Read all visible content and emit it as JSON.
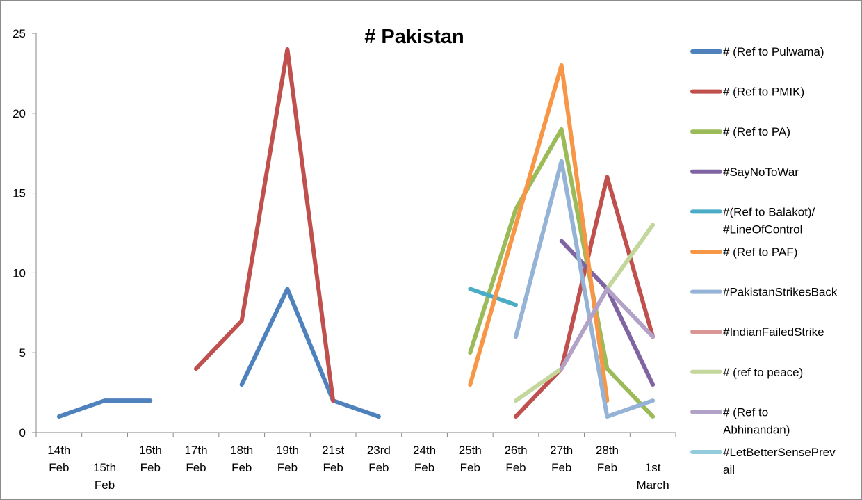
{
  "chart_data": {
    "type": "line",
    "title": "# Pakistan",
    "xlabel": "",
    "ylabel": "",
    "ylim": [
      0,
      25
    ],
    "yticks": [
      "0",
      "5",
      "10",
      "15",
      "20",
      "25"
    ],
    "categories": [
      [
        "14th",
        "Feb"
      ],
      [
        "15th",
        "Feb"
      ],
      [
        "16th",
        "Feb"
      ],
      [
        "17th",
        "Feb"
      ],
      [
        "18th",
        "Feb"
      ],
      [
        "19th",
        "Feb"
      ],
      [
        "21st",
        "Feb"
      ],
      [
        "23rd",
        "Feb"
      ],
      [
        "24th",
        "Feb"
      ],
      [
        "25th",
        "Feb"
      ],
      [
        "26th",
        "Feb"
      ],
      [
        "27th",
        "Feb"
      ],
      [
        "28th",
        "Feb"
      ],
      [
        "1st",
        "March"
      ]
    ],
    "legend_position": "right",
    "grid": false,
    "series": [
      {
        "name": [
          "# (Ref to Pulwama)"
        ],
        "color": "#4f81bd",
        "values": [
          1,
          2,
          2,
          null,
          3,
          9,
          2,
          1,
          null,
          null,
          null,
          null,
          null,
          null
        ]
      },
      {
        "name": [
          "# (Ref to PMIK)"
        ],
        "color": "#c0504d",
        "values": [
          null,
          null,
          null,
          4,
          7,
          24,
          2,
          null,
          null,
          null,
          1,
          4,
          16,
          6
        ]
      },
      {
        "name": [
          "# (Ref to PA)"
        ],
        "color": "#9bbb59",
        "values": [
          null,
          null,
          null,
          null,
          null,
          null,
          null,
          null,
          null,
          5,
          14,
          19,
          4,
          1
        ]
      },
      {
        "name": [
          "#SayNoToWar"
        ],
        "color": "#8064a2",
        "values": [
          null,
          null,
          null,
          null,
          null,
          null,
          null,
          null,
          null,
          null,
          null,
          12,
          9,
          3
        ]
      },
      {
        "name": [
          "#(Ref to Balakot)/",
          "#LineOfControl"
        ],
        "color": "#4bacc6",
        "values": [
          null,
          null,
          null,
          null,
          null,
          null,
          null,
          null,
          null,
          9,
          8,
          null,
          null,
          null
        ]
      },
      {
        "name": [
          "# (Ref to PAF)"
        ],
        "color": "#f79646",
        "values": [
          null,
          null,
          null,
          null,
          null,
          null,
          null,
          null,
          null,
          3,
          13,
          23,
          2,
          null
        ]
      },
      {
        "name": [
          "#PakistanStrikesBack"
        ],
        "color": "#95b3d7",
        "values": [
          null,
          null,
          null,
          null,
          null,
          null,
          null,
          null,
          null,
          null,
          6,
          17,
          1,
          2
        ]
      },
      {
        "name": [
          "#IndianFailedStrike"
        ],
        "color": "#d99694",
        "values": [
          null,
          null,
          null,
          null,
          null,
          null,
          null,
          null,
          null,
          null,
          null,
          null,
          null,
          null
        ]
      },
      {
        "name": [
          "# (ref to peace)"
        ],
        "color": "#c3d69b",
        "values": [
          null,
          null,
          null,
          null,
          null,
          null,
          null,
          null,
          null,
          null,
          2,
          4,
          9,
          13
        ]
      },
      {
        "name": [
          "# (Ref to",
          "Abhinandan)"
        ],
        "color": "#b3a2c7",
        "values": [
          null,
          null,
          null,
          null,
          null,
          null,
          null,
          null,
          null,
          null,
          null,
          4,
          9,
          6
        ]
      },
      {
        "name": [
          "#LetBetterSensePrev",
          "ail"
        ],
        "color": "#93cddd",
        "values": [
          null,
          null,
          null,
          null,
          null,
          null,
          null,
          null,
          null,
          null,
          null,
          null,
          null,
          null
        ]
      }
    ]
  }
}
